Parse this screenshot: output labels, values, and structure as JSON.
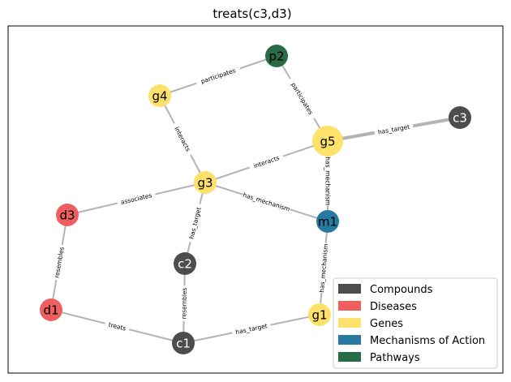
{
  "title": "treats(c3,d3)",
  "colors": {
    "compound": "#4d4d4d",
    "disease": "#f05f5f",
    "gene": "#fde16a",
    "mechanism": "#2779a1",
    "pathway": "#2a6b47",
    "edge": "#b3b3b3"
  },
  "nodes": [
    {
      "id": "p2",
      "type": "pathway",
      "highlight": false
    },
    {
      "id": "g4",
      "type": "gene",
      "highlight": false
    },
    {
      "id": "c3",
      "type": "compound",
      "highlight": false
    },
    {
      "id": "g5",
      "type": "gene",
      "highlight": true
    },
    {
      "id": "g3",
      "type": "gene",
      "highlight": false
    },
    {
      "id": "d3",
      "type": "disease",
      "highlight": false
    },
    {
      "id": "m1",
      "type": "mechanism",
      "highlight": false
    },
    {
      "id": "c2",
      "type": "compound",
      "highlight": false
    },
    {
      "id": "d1",
      "type": "disease",
      "highlight": false
    },
    {
      "id": "g1",
      "type": "gene",
      "highlight": false
    },
    {
      "id": "c1",
      "type": "compound",
      "highlight": false
    }
  ],
  "edges": [
    {
      "source": "g4",
      "target": "p2",
      "label": "participates",
      "weight": 1
    },
    {
      "source": "p2",
      "target": "g5",
      "label": "participates",
      "weight": 1
    },
    {
      "source": "g5",
      "target": "c3",
      "label": "has_target",
      "weight": 2
    },
    {
      "source": "g4",
      "target": "g3",
      "label": "interacts",
      "weight": 1
    },
    {
      "source": "g3",
      "target": "g5",
      "label": "interacts",
      "weight": 1
    },
    {
      "source": "g5",
      "target": "m1",
      "label": "has_mechanism",
      "weight": 1
    },
    {
      "source": "g3",
      "target": "m1",
      "label": "has_mechanism",
      "weight": 1
    },
    {
      "source": "d3",
      "target": "g3",
      "label": "associates",
      "weight": 1
    },
    {
      "source": "c2",
      "target": "g3",
      "label": "has_target",
      "weight": 1
    },
    {
      "source": "d1",
      "target": "d3",
      "label": "resembles",
      "weight": 1
    },
    {
      "source": "c1",
      "target": "c2",
      "label": "resembles",
      "weight": 1
    },
    {
      "source": "d1",
      "target": "c1",
      "label": "treats",
      "weight": 1
    },
    {
      "source": "c1",
      "target": "g1",
      "label": "has_target",
      "weight": 1
    },
    {
      "source": "g1",
      "target": "m1",
      "label": "has_mechanism",
      "weight": 1
    }
  ],
  "legend": [
    {
      "label": "Compounds",
      "type": "compound"
    },
    {
      "label": "Diseases",
      "type": "disease"
    },
    {
      "label": "Genes",
      "type": "gene"
    },
    {
      "label": "Mechanisms of Action",
      "type": "mechanism"
    },
    {
      "label": "Pathways",
      "type": "pathway"
    }
  ]
}
